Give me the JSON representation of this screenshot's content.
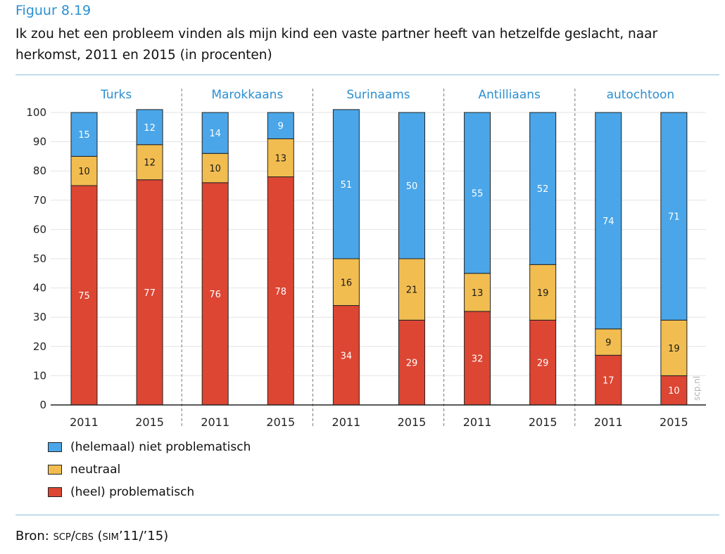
{
  "figure_label": "Figuur 8.19",
  "title": "Ik zou het een probleem vinden als mijn kind een vaste partner heeft van hetzelfde geslacht, naar herkomst, 2011 en 2015 (in procenten)",
  "watermark": "scp.nl",
  "source_prefix": "Bron: ",
  "source_text": "scp/cbs (sim’11/’15)",
  "colors": {
    "blue": "#4aa6e8",
    "yellow": "#f2bd50",
    "red": "#dc4633",
    "group_label": "#2b8fd0",
    "grid": "#e3e3e3",
    "rule": "#8cbfe0"
  },
  "legend": [
    {
      "label": "(helemaal) niet problematisch",
      "color": "#4aa6e8"
    },
    {
      "label": "neutraal",
      "color": "#f2bd50"
    },
    {
      "label": "(heel) problematisch",
      "color": "#dc4633"
    }
  ],
  "chart_data": {
    "type": "bar",
    "stacked": true,
    "ylim": [
      0,
      100
    ],
    "yticks": [
      0,
      10,
      20,
      30,
      40,
      50,
      60,
      70,
      80,
      90,
      100
    ],
    "grid": true,
    "groups": [
      "Turks",
      "Marokkaans",
      "Surinaams",
      "Antilliaans",
      "autochtoon"
    ],
    "categories": [
      "2011",
      "2015",
      "2011",
      "2015",
      "2011",
      "2015",
      "2011",
      "2015",
      "2011",
      "2015"
    ],
    "series": [
      {
        "name": "(heel) problematisch",
        "color": "#dc4633",
        "values": [
          75,
          77,
          76,
          78,
          34,
          29,
          32,
          29,
          17,
          10
        ]
      },
      {
        "name": "neutraal",
        "color": "#f2bd50",
        "values": [
          10,
          12,
          10,
          13,
          16,
          21,
          13,
          19,
          9,
          19
        ]
      },
      {
        "name": "(helemaal) niet problematisch",
        "color": "#4aa6e8",
        "values": [
          15,
          12,
          14,
          9,
          51,
          50,
          55,
          52,
          74,
          71
        ]
      }
    ]
  }
}
